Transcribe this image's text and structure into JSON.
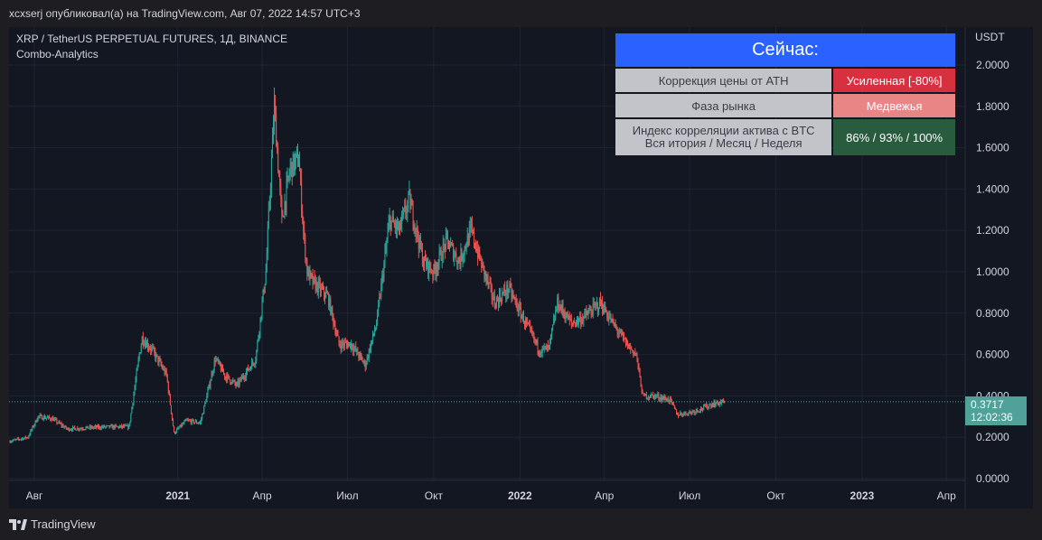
{
  "header": {
    "publish_line": "xcxserj опубликовал(а) на TradingView.com, Авг 07, 2022 14:57 UTC+3"
  },
  "chart": {
    "symbol_line": "XRP / TetherUS PERPETUAL FUTURES, 1Д, BINANCE",
    "indicator_line": "Combo-Analytics",
    "currency": "USDT",
    "last_price": "0.3717",
    "countdown": "12:02:36",
    "colors": {
      "background": "#131722",
      "grid": "#1f2433",
      "up": "#26a69a",
      "down": "#ef5350",
      "price_line": "#4fa19a",
      "axis_text": "#d1d4dc"
    }
  },
  "table": {
    "header": "Сейчас:",
    "rows": [
      {
        "label": "Коррекция цены от ATH",
        "value": "Усиленная [-80%]",
        "color": "#d7303f"
      },
      {
        "label": "Фаза рынка",
        "value": "Медвежья",
        "color": "#e88585"
      },
      {
        "label_line1": "Индекс корреляции актива с BTC",
        "label_line2": "Вся итория / Месяц / Неделя",
        "value": "86% / 93% / 100%",
        "color": "#295b3f"
      }
    ]
  },
  "chart_data": {
    "type": "candlestick",
    "title": "",
    "ylabel": "USDT",
    "ylim": [
      0,
      2.08
    ],
    "y_ticks": [
      "0.0000",
      "0.2000",
      "0.4000",
      "0.6000",
      "0.8000",
      "1.0000",
      "1.2000",
      "1.4000",
      "1.6000",
      "1.8000",
      "2.0000"
    ],
    "x_ticks": [
      {
        "label": "Авг",
        "bold": false,
        "date": "2020-08-01"
      },
      {
        "label": "2021",
        "bold": true,
        "date": "2021-01-01"
      },
      {
        "label": "Апр",
        "bold": false,
        "date": "2021-04-01"
      },
      {
        "label": "Июл",
        "bold": false,
        "date": "2021-07-01"
      },
      {
        "label": "Окт",
        "bold": false,
        "date": "2021-10-01"
      },
      {
        "label": "2022",
        "bold": true,
        "date": "2022-01-01"
      },
      {
        "label": "Апр",
        "bold": false,
        "date": "2022-04-01"
      },
      {
        "label": "Июл",
        "bold": false,
        "date": "2022-07-01"
      },
      {
        "label": "Окт",
        "bold": false,
        "date": "2022-10-01"
      },
      {
        "label": "2023",
        "bold": true,
        "date": "2023-01-01"
      },
      {
        "label": "Апр",
        "bold": false,
        "date": "2023-04-01"
      }
    ],
    "x_range": [
      "2020-07-05",
      "2023-04-21"
    ],
    "close_path": [
      [
        "2020-07-05",
        0.18
      ],
      [
        "2020-07-25",
        0.2
      ],
      [
        "2020-08-05",
        0.3
      ],
      [
        "2020-08-20",
        0.29
      ],
      [
        "2020-09-05",
        0.24
      ],
      [
        "2020-10-15",
        0.25
      ],
      [
        "2020-11-10",
        0.25
      ],
      [
        "2020-11-21",
        0.6
      ],
      [
        "2020-11-24",
        0.68
      ],
      [
        "2020-12-05",
        0.62
      ],
      [
        "2020-12-20",
        0.5
      ],
      [
        "2020-12-28",
        0.22
      ],
      [
        "2021-01-10",
        0.28
      ],
      [
        "2021-01-25",
        0.27
      ],
      [
        "2021-02-01",
        0.4
      ],
      [
        "2021-02-10",
        0.58
      ],
      [
        "2021-02-20",
        0.5
      ],
      [
        "2021-03-05",
        0.45
      ],
      [
        "2021-03-25",
        0.58
      ],
      [
        "2021-04-05",
        1.0
      ],
      [
        "2021-04-14",
        1.8
      ],
      [
        "2021-04-22",
        1.25
      ],
      [
        "2021-05-01",
        1.5
      ],
      [
        "2021-05-10",
        1.55
      ],
      [
        "2021-05-15",
        1.2
      ],
      [
        "2021-05-19",
        1.0
      ],
      [
        "2021-05-25",
        0.95
      ],
      [
        "2021-06-10",
        0.88
      ],
      [
        "2021-06-22",
        0.65
      ],
      [
        "2021-07-05",
        0.65
      ],
      [
        "2021-07-20",
        0.55
      ],
      [
        "2021-08-01",
        0.75
      ],
      [
        "2021-08-15",
        1.25
      ],
      [
        "2021-08-25",
        1.2
      ],
      [
        "2021-09-05",
        1.35
      ],
      [
        "2021-09-20",
        1.05
      ],
      [
        "2021-10-01",
        1.0
      ],
      [
        "2021-10-15",
        1.15
      ],
      [
        "2021-10-28",
        1.05
      ],
      [
        "2021-11-10",
        1.2
      ],
      [
        "2021-11-20",
        1.05
      ],
      [
        "2021-12-05",
        0.85
      ],
      [
        "2021-12-20",
        0.92
      ],
      [
        "2022-01-05",
        0.77
      ],
      [
        "2022-01-22",
        0.62
      ],
      [
        "2022-02-01",
        0.63
      ],
      [
        "2022-02-10",
        0.85
      ],
      [
        "2022-02-25",
        0.75
      ],
      [
        "2022-03-10",
        0.78
      ],
      [
        "2022-03-28",
        0.85
      ],
      [
        "2022-04-10",
        0.75
      ],
      [
        "2022-04-25",
        0.65
      ],
      [
        "2022-05-05",
        0.6
      ],
      [
        "2022-05-12",
        0.4
      ],
      [
        "2022-05-25",
        0.4
      ],
      [
        "2022-06-10",
        0.38
      ],
      [
        "2022-06-18",
        0.31
      ],
      [
        "2022-07-01",
        0.32
      ],
      [
        "2022-07-15",
        0.34
      ],
      [
        "2022-07-25",
        0.36
      ],
      [
        "2022-08-07",
        0.3717
      ]
    ]
  },
  "footer": {
    "brand": "TradingView"
  }
}
